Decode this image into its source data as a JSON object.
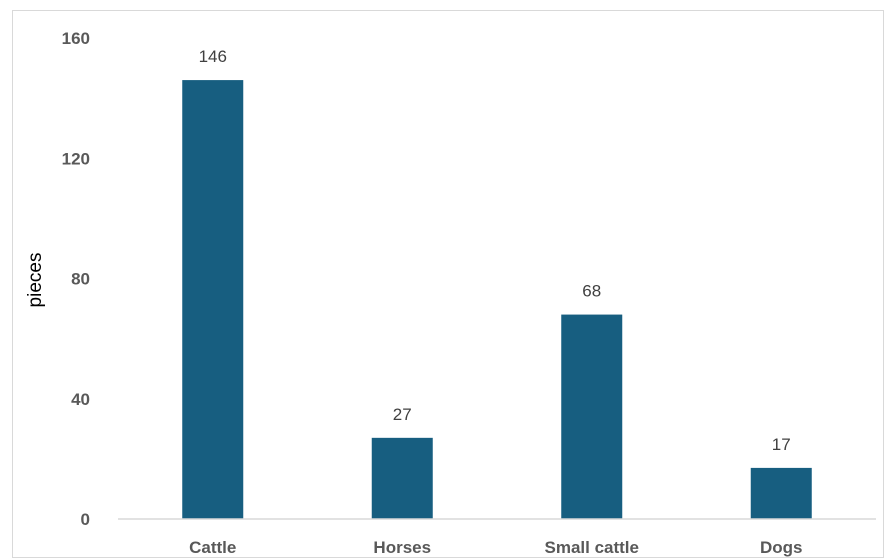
{
  "chart_data": {
    "type": "bar",
    "title": "",
    "xlabel": "",
    "ylabel": "pieces",
    "categories": [
      "Cattle",
      "Horses",
      "Small cattle",
      "Dogs"
    ],
    "values": [
      146,
      27,
      68,
      17
    ],
    "data_labels": [
      "146",
      "27",
      "68",
      "17"
    ],
    "yticks": [
      0,
      40,
      80,
      120,
      160
    ],
    "ytick_labels": [
      "0",
      "40",
      "80",
      "120",
      "160"
    ],
    "ylim": [
      0,
      160
    ],
    "grid": false,
    "legend": "none",
    "bar_color": "#175e80"
  }
}
